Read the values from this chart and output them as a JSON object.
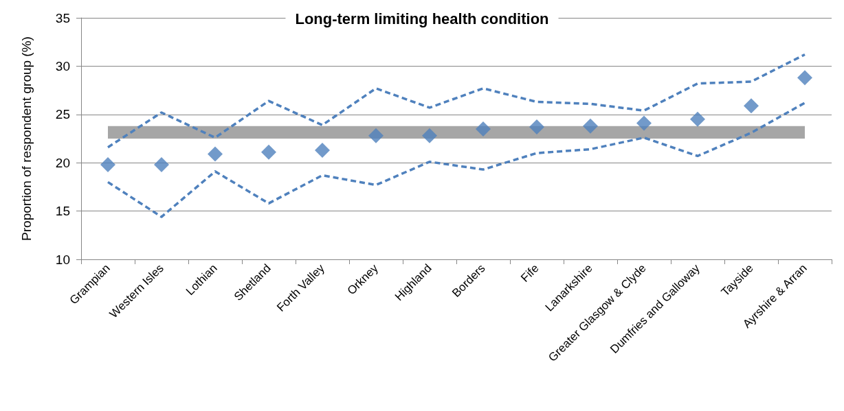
{
  "chart_data": {
    "type": "scatter",
    "title": "Long-term limiting health condition",
    "ylabel": "Proportion of respondent group (%)",
    "categories": [
      "Grampian",
      "Western Isles",
      "Lothian",
      "Shetland",
      "Forth Valley",
      "Orkney",
      "Highland",
      "Borders",
      "Fife",
      "Lanarkshire",
      "Greater Glasgow & Clyde",
      "Dumfries and Galloway",
      "Tayside",
      "Ayrshire & Arran"
    ],
    "series": [
      {
        "type": "line",
        "color": "#4f81bd",
        "line_style": "dashed",
        "marker": "none",
        "values": [
          21.6,
          25.2,
          22.6,
          26.4,
          23.9,
          27.7,
          25.7,
          27.7,
          26.3,
          26.1,
          25.4,
          28.2,
          28.4,
          31.2
        ]
      },
      {
        "type": "line",
        "color": "#4f81bd",
        "line_style": "dashed",
        "marker": "none",
        "values": [
          18.0,
          14.4,
          19.1,
          15.8,
          18.7,
          17.7,
          20.1,
          19.3,
          21.0,
          21.4,
          22.6,
          20.7,
          23.1,
          26.2
        ]
      },
      {
        "color": "#4f81bd",
        "marker": "diamond",
        "values": [
          19.8,
          19.8,
          20.9,
          21.1,
          21.3,
          22.8,
          22.8,
          23.5,
          23.7,
          23.8,
          24.1,
          24.5,
          25.9,
          28.8
        ]
      }
    ],
    "bands": [
      {
        "axis": "y",
        "from": 22.5,
        "to": 23.8,
        "color": "#a6a6a6"
      }
    ],
    "ylim": [
      10,
      35
    ],
    "yticks": [
      10,
      15,
      20,
      25,
      30,
      35
    ],
    "grid": "y"
  }
}
